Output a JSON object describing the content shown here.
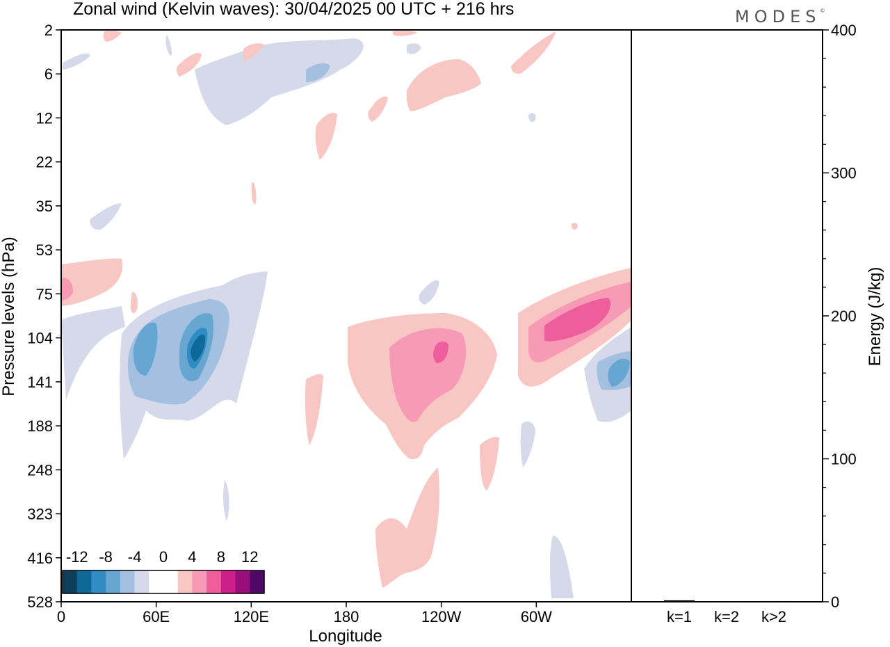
{
  "title": "Zonal wind (Kelvin waves):  30/04/2025  00 UTC  + 216 hrs",
  "logo": "MODES",
  "logo_mark": "©",
  "chart_data": [
    {
      "type": "heatmap",
      "title": "Zonal wind (Kelvin waves):  30/04/2025  00 UTC  + 216 hrs",
      "xlabel": "Longitude",
      "ylabel": "Pressure levels (hPa)",
      "x_ticks": [
        "0",
        "60E",
        "120E",
        "180",
        "120W",
        "60W"
      ],
      "y_ticks": [
        "2",
        "6",
        "12",
        "22",
        "35",
        "53",
        "75",
        "104",
        "141",
        "188",
        "248",
        "323",
        "416",
        "528"
      ],
      "y_order": "top-to-bottom",
      "colorbar": {
        "labels": [
          "-12",
          "-8",
          "-4",
          "0",
          "4",
          "8",
          "12"
        ],
        "colors": [
          "#0d3f5c",
          "#0f6898",
          "#2f8cc4",
          "#68a6d2",
          "#a3c0e0",
          "#d5d9ea",
          "#ffffff",
          "#ffffff",
          "#f8c6c3",
          "#f69ab5",
          "#ee5d9c",
          "#cc1f8c",
          "#9a0d7b",
          "#4f0868"
        ],
        "location": "bottom-left"
      },
      "features": [
        {
          "level": 8,
          "desc": "positive anomaly near 60W, 75-104 hPa"
        },
        {
          "level": 8,
          "desc": "positive anomaly near 120W, 120 hPa"
        },
        {
          "level": -12,
          "desc": "negative anomaly near 80E, 110 hPa"
        },
        {
          "level": -8,
          "desc": "negative anomaly near 50E, 120 hPa"
        },
        {
          "level": 4,
          "desc": "positive anomaly near 150W, 300-450 hPa"
        }
      ]
    },
    {
      "type": "bar",
      "categories": [
        "k=1",
        "k=2",
        "k>2"
      ],
      "values": [
        1,
        0.2,
        0.5
      ],
      "ylabel": "Energy (J/kg)",
      "ylim": [
        0,
        400
      ],
      "y_ticks": [
        "0",
        "100",
        "200",
        "300",
        "400"
      ],
      "y_axis_side": "right"
    }
  ],
  "colors": {
    "axis": "#000000",
    "logo": "#555555"
  }
}
